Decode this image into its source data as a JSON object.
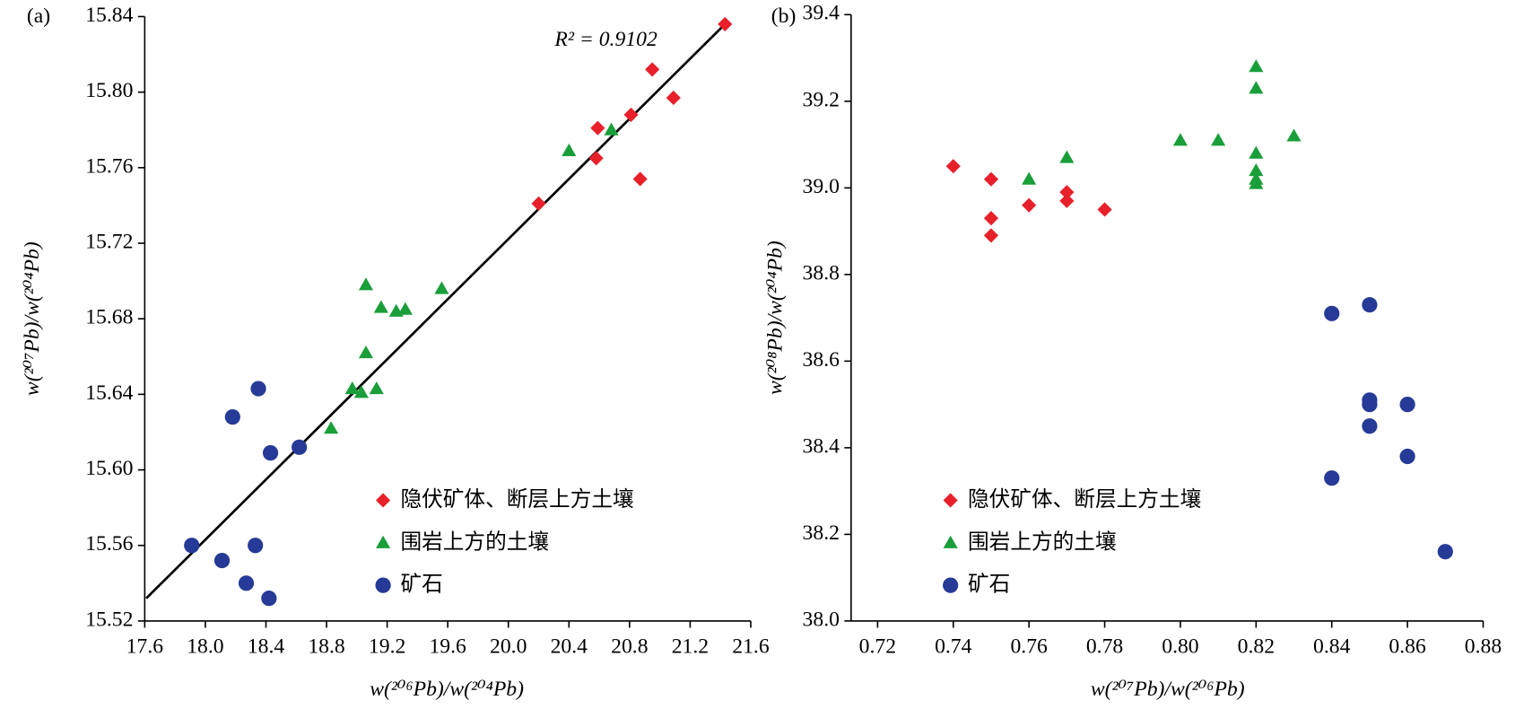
{
  "chart_data": [
    {
      "type": "scatter",
      "panel_label": "(a)",
      "xlabel": "w(²⁰⁶Pb)/w(²⁰⁴Pb)",
      "ylabel": "w(²⁰⁷Pb)/w(²⁰⁴Pb)",
      "xlim": [
        17.6,
        21.6
      ],
      "ylim": [
        15.52,
        15.84
      ],
      "xticks": [
        17.6,
        {
          "value": 18,
          "label": "18.0"
        },
        18.4,
        18.8,
        19.2,
        19.6,
        {
          "value": 20,
          "label": "20.0"
        },
        20.4,
        20.8,
        21.2,
        21.6
      ],
      "yticks": [
        15.52,
        15.56,
        {
          "value": 15.6,
          "label": "15.60"
        },
        15.64,
        15.68,
        15.72,
        15.76,
        {
          "value": 15.8,
          "label": "15.80"
        },
        15.84
      ],
      "legend": "lower right",
      "annotation": "R² = 0.9102",
      "trendline": {
        "x": [
          17.61,
          21.43
        ],
        "y": [
          15.532,
          15.836
        ],
        "color": "#000000"
      },
      "series": [
        {
          "name": "隐伏矿体、断层上方土壤",
          "color": "#e8202a",
          "marker": "diamond",
          "x": [
            21.43,
            20.95,
            21.09,
            20.81,
            20.59,
            20.58,
            20.87,
            20.2
          ],
          "y": [
            15.836,
            15.812,
            15.797,
            15.788,
            15.781,
            15.765,
            15.754,
            15.741
          ]
        },
        {
          "name": "围岩上方的土壤",
          "color": "#1a9e3a",
          "marker": "triangle",
          "x": [
            20.68,
            20.4,
            19.56,
            19.06,
            19.16,
            19.32,
            19.26,
            19.06,
            18.97,
            19.03,
            19.13,
            18.83
          ],
          "y": [
            15.78,
            15.769,
            15.696,
            15.698,
            15.686,
            15.685,
            15.684,
            15.662,
            15.643,
            15.641,
            15.643,
            15.622
          ]
        },
        {
          "name": "矿石",
          "color": "#263a97",
          "marker": "circle",
          "x": [
            18.35,
            18.18,
            18.43,
            18.62,
            17.91,
            18.33,
            18.11,
            18.27,
            18.42
          ],
          "y": [
            15.643,
            15.628,
            15.609,
            15.612,
            15.56,
            15.56,
            15.552,
            15.54,
            15.532
          ]
        }
      ]
    },
    {
      "type": "scatter",
      "panel_label": "(b)",
      "xlabel": "w(²⁰⁷Pb)/w(²⁰⁶Pb)",
      "ylabel": "w(²⁰⁸Pb)/w(²⁰⁴Pb)",
      "xlim": [
        0.713,
        0.88
      ],
      "ylim": [
        38,
        39.4
      ],
      "xticks": [
        0.72,
        0.74,
        0.76,
        0.78,
        {
          "value": 0.8,
          "label": "0.80"
        },
        0.82,
        0.84,
        0.86,
        0.88
      ],
      "yticks": [
        {
          "value": 38,
          "label": "38.0"
        },
        38.2,
        38.4,
        38.6,
        38.8,
        {
          "value": 39,
          "label": "39.0"
        },
        39.2,
        39.4
      ],
      "legend": "lower right",
      "series": [
        {
          "name": "隐伏矿体、断层上方土壤",
          "color": "#e8202a",
          "marker": "diamond",
          "x": [
            0.74,
            0.75,
            0.75,
            0.75,
            0.76,
            0.77,
            0.77,
            0.78
          ],
          "y": [
            39.05,
            39.02,
            38.93,
            38.89,
            38.96,
            38.99,
            38.97,
            38.95
          ]
        },
        {
          "name": "围岩上方的土壤",
          "color": "#1a9e3a",
          "marker": "triangle",
          "x": [
            0.76,
            0.77,
            0.8,
            0.81,
            0.82,
            0.82,
            0.82,
            0.82,
            0.82,
            0.82,
            0.83
          ],
          "y": [
            39.02,
            39.07,
            39.11,
            39.11,
            39.28,
            39.23,
            39.08,
            39.04,
            39.02,
            39.01,
            39.12
          ]
        },
        {
          "name": "矿石",
          "color": "#263a97",
          "marker": "circle",
          "x": [
            0.84,
            0.85,
            0.85,
            0.85,
            0.86,
            0.85,
            0.86,
            0.84,
            0.87
          ],
          "y": [
            38.71,
            38.73,
            38.51,
            38.5,
            38.5,
            38.45,
            38.38,
            38.33,
            38.16
          ]
        }
      ]
    }
  ]
}
